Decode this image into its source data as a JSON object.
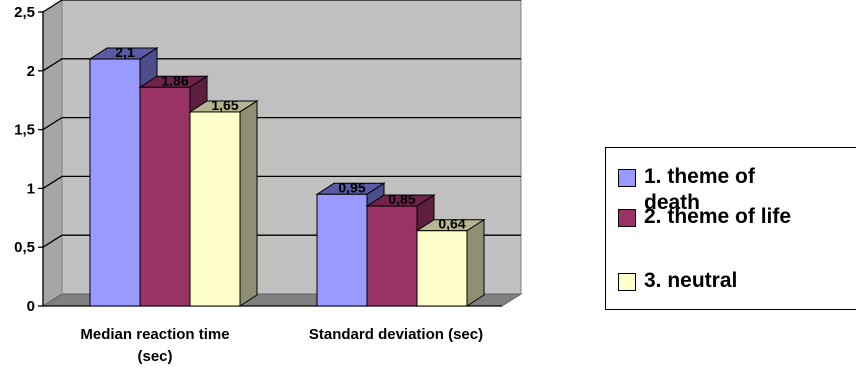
{
  "chart_data": {
    "type": "bar",
    "categories": [
      "Median reaction time (sec)",
      "Standard deviation (sec)"
    ],
    "category_lines": [
      [
        "Median reaction time",
        "(sec)"
      ],
      [
        "Standard deviation (sec)"
      ]
    ],
    "series": [
      {
        "name": "1. theme of death",
        "name_lines": [
          "1. theme of",
          "death"
        ],
        "values": [
          2.1,
          0.95
        ],
        "labels": [
          "2,1",
          "0,95"
        ],
        "color": "#9999ff",
        "top_color": "#5a5aa6",
        "side_color": "#4d4d8c"
      },
      {
        "name": "2. theme of life",
        "name_lines": [
          "2. theme of life"
        ],
        "values": [
          1.86,
          0.85
        ],
        "labels": [
          "1,86",
          "0,85"
        ],
        "color": "#993366",
        "top_color": "#6e2449",
        "side_color": "#5c1f3d"
      },
      {
        "name": "3. neutral",
        "name_lines": [
          "3. neutral"
        ],
        "values": [
          1.65,
          0.64
        ],
        "labels": [
          "1,65",
          "0,64"
        ],
        "color": "#ffffcc",
        "top_color": "#b5b591",
        "side_color": "#8f8f73"
      }
    ],
    "yticks": [
      0,
      0.5,
      1,
      1.5,
      2,
      2.5
    ],
    "ytick_labels": [
      "0",
      "0,5",
      "1",
      "1,5",
      "2",
      "2,5"
    ],
    "ylim": [
      0,
      2.5
    ],
    "grid": true,
    "legend_position": "right",
    "title": "",
    "xlabel": "",
    "ylabel": ""
  }
}
